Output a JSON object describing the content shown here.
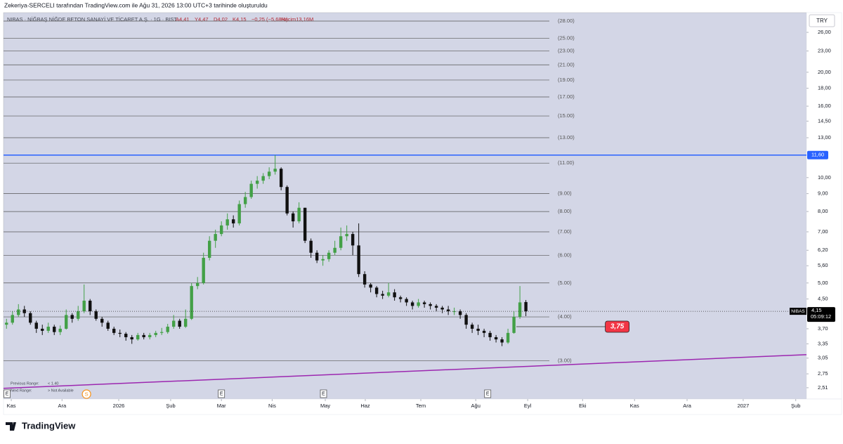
{
  "header": "Zekeriya-SERCELI tarafından TradingView.com ile Ağu 31, 2026 13:00 UTC+3 tarihinde oluşturuldu",
  "footer": "TradingView",
  "chart_data": {
    "type": "candlestick",
    "symbol": "NIBAS · NİĞBAŞ NİĞDE BETON SANAYİ VE TİCARET A.Ş. · 1G · BIST",
    "ohlc_legend": [
      "A4,41",
      "Y4,47",
      "D4,02",
      "K4,15",
      "−0,25 (−5,68%)"
    ],
    "volume_legend": "Hacim13,16M",
    "currency": "TRY",
    "up_color": "#43a047",
    "down_color": "#111111",
    "log_scale": true,
    "open": [
      3.8,
      3.85,
      4.05,
      4.2,
      4.1,
      3.85,
      3.7,
      3.65,
      3.75,
      3.62,
      3.7,
      4.05,
      3.95,
      4.15,
      4.45,
      4.15,
      3.95,
      3.85,
      3.7,
      3.6,
      3.58,
      3.5,
      3.45,
      3.55,
      3.5,
      3.55,
      3.6,
      3.62,
      3.75,
      3.9,
      3.75,
      3.95,
      4.9,
      5.0,
      5.9,
      6.6,
      6.9,
      7.3,
      7.6,
      7.4,
      8.4,
      8.8,
      9.6,
      9.8,
      10.1,
      10.4,
      10.6,
      9.4,
      7.9,
      7.5,
      8.2,
      6.6,
      6.1,
      5.8,
      5.85,
      6.1,
      6.3,
      6.8,
      6.9,
      6.4,
      5.3,
      4.95,
      4.85,
      4.65,
      4.6,
      4.7,
      4.55,
      4.5,
      4.4,
      4.3,
      4.4,
      4.35,
      4.3,
      4.25,
      4.2,
      4.15,
      4.15,
      4.05,
      3.8,
      3.7,
      3.65,
      3.6,
      3.5,
      3.45,
      3.38,
      3.6,
      4.0,
      4.41
    ],
    "high": [
      3.95,
      4.15,
      4.35,
      4.3,
      4.15,
      3.9,
      3.8,
      3.85,
      3.8,
      3.78,
      4.2,
      4.1,
      4.3,
      4.95,
      4.5,
      4.2,
      4.0,
      3.9,
      3.75,
      3.68,
      3.62,
      3.55,
      3.6,
      3.6,
      3.6,
      3.65,
      3.72,
      3.82,
      4.05,
      3.95,
      4.2,
      5.0,
      5.2,
      6.1,
      6.8,
      7.1,
      7.5,
      7.9,
      7.8,
      8.6,
      9.1,
      9.8,
      10.1,
      10.3,
      10.7,
      11.6,
      10.7,
      9.5,
      8.0,
      8.5,
      8.2,
      6.7,
      6.2,
      6.0,
      6.2,
      6.6,
      7.2,
      7.3,
      7.0,
      7.4,
      5.4,
      5.0,
      4.9,
      4.75,
      5.0,
      4.8,
      4.6,
      4.55,
      4.45,
      4.5,
      4.45,
      4.4,
      4.35,
      4.3,
      4.3,
      4.25,
      4.2,
      4.1,
      3.85,
      3.8,
      3.7,
      3.65,
      3.55,
      3.5,
      3.7,
      4.15,
      4.9,
      4.47
    ],
    "low": [
      3.7,
      3.8,
      4.0,
      4.0,
      3.8,
      3.6,
      3.55,
      3.6,
      3.55,
      3.55,
      3.68,
      3.85,
      3.9,
      4.1,
      4.05,
      3.9,
      3.75,
      3.65,
      3.55,
      3.5,
      3.42,
      3.35,
      3.42,
      3.45,
      3.45,
      3.5,
      3.55,
      3.58,
      3.7,
      3.7,
      3.72,
      3.92,
      4.8,
      4.95,
      5.8,
      6.3,
      6.8,
      7.1,
      7.2,
      7.3,
      8.2,
      8.7,
      9.3,
      9.6,
      9.9,
      10.2,
      9.2,
      7.8,
      7.2,
      7.4,
      6.5,
      5.9,
      5.7,
      5.6,
      5.75,
      6.0,
      6.2,
      6.6,
      6.0,
      5.2,
      4.85,
      4.7,
      4.55,
      4.5,
      4.55,
      4.45,
      4.4,
      4.3,
      4.2,
      4.25,
      4.25,
      4.2,
      4.15,
      4.1,
      4.05,
      4.05,
      3.95,
      3.7,
      3.6,
      3.55,
      3.5,
      3.42,
      3.38,
      3.3,
      3.35,
      3.58,
      3.95,
      4.02
    ],
    "close": [
      3.85,
      4.05,
      4.2,
      4.1,
      3.85,
      3.7,
      3.65,
      3.75,
      3.62,
      3.7,
      4.05,
      3.95,
      4.15,
      4.45,
      4.15,
      3.95,
      3.85,
      3.7,
      3.6,
      3.58,
      3.5,
      3.45,
      3.55,
      3.5,
      3.55,
      3.6,
      3.62,
      3.75,
      3.9,
      3.75,
      3.95,
      4.9,
      5.0,
      5.9,
      6.6,
      6.9,
      7.3,
      7.6,
      7.4,
      8.4,
      8.8,
      9.6,
      9.8,
      10.1,
      10.4,
      10.6,
      9.4,
      7.9,
      7.5,
      8.2,
      6.6,
      6.1,
      5.8,
      5.85,
      6.1,
      6.3,
      6.8,
      6.9,
      6.4,
      5.3,
      4.95,
      4.85,
      4.65,
      4.6,
      4.7,
      4.55,
      4.5,
      4.4,
      4.3,
      4.4,
      4.35,
      4.3,
      4.25,
      4.2,
      4.15,
      4.15,
      4.05,
      3.8,
      3.7,
      3.65,
      3.6,
      3.5,
      3.45,
      3.38,
      3.6,
      4.0,
      4.4,
      4.15
    ],
    "last_price_label": "4,15",
    "countdown": "05:09:12",
    "xlim": [
      0,
      134.5
    ],
    "xticks": [
      {
        "value": 1.3,
        "label": "Kas"
      },
      {
        "value": 9.8,
        "label": "Ara"
      },
      {
        "value": 19.3,
        "label": "2026"
      },
      {
        "value": 28,
        "label": "Şub"
      },
      {
        "value": 36.5,
        "label": "Mar"
      },
      {
        "value": 45,
        "label": "Nis"
      },
      {
        "value": 53.9,
        "label": "May"
      },
      {
        "value": 60.6,
        "label": "Haz"
      },
      {
        "value": 69.9,
        "label": "Tem"
      },
      {
        "value": 79.1,
        "label": "Ağu"
      },
      {
        "value": 87.8,
        "label": "Eyl"
      },
      {
        "value": 97,
        "label": "Eki"
      },
      {
        "value": 105.7,
        "label": "Kas"
      },
      {
        "value": 114.5,
        "label": "Ara"
      },
      {
        "value": 123.9,
        "label": "2027"
      },
      {
        "value": 132.7,
        "label": "Şub"
      }
    ],
    "ylim": [
      2.33,
      29.6
    ],
    "yticks": [
      {
        "value": 26,
        "label": "26,00"
      },
      {
        "value": 23,
        "label": "23,00"
      },
      {
        "value": 20,
        "label": "20,00"
      },
      {
        "value": 18,
        "label": "18,00"
      },
      {
        "value": 16,
        "label": "16,00"
      },
      {
        "value": 14.5,
        "label": "14,50"
      },
      {
        "value": 13,
        "label": "13,00"
      },
      {
        "value": 10,
        "label": "10,00"
      },
      {
        "value": 9,
        "label": "9,00"
      },
      {
        "value": 8,
        "label": "8,00"
      },
      {
        "value": 7,
        "label": "7,00"
      },
      {
        "value": 6.2,
        "label": "6,20"
      },
      {
        "value": 5.6,
        "label": "5,60"
      },
      {
        "value": 5,
        "label": "5,00"
      },
      {
        "value": 4.5,
        "label": "4,50"
      },
      {
        "value": 3.7,
        "label": "3,70"
      },
      {
        "value": 3.35,
        "label": "3,35"
      },
      {
        "value": 3.05,
        "label": "3,05"
      },
      {
        "value": 2.75,
        "label": "2,75"
      },
      {
        "value": 2.51,
        "label": "2,51"
      }
    ],
    "levels": [
      {
        "value": 28,
        "label": "(28.00)"
      },
      {
        "value": 25,
        "label": "(25.00)"
      },
      {
        "value": 23,
        "label": "(23.00)"
      },
      {
        "value": 21,
        "label": "(21.00)"
      },
      {
        "value": 19,
        "label": "(19.00)"
      },
      {
        "value": 17,
        "label": "(17.00)"
      },
      {
        "value": 15,
        "label": "(15.00)"
      },
      {
        "value": 13,
        "label": "(13.00)"
      },
      {
        "value": 11,
        "label": "(11.00)"
      },
      {
        "value": 9,
        "label": "(9.00)"
      },
      {
        "value": 8,
        "label": "(8.00)"
      },
      {
        "value": 7,
        "label": "(7.00)"
      },
      {
        "value": 6,
        "label": "(6.00)"
      },
      {
        "value": 5,
        "label": "(5.00)"
      },
      {
        "value": 4,
        "label": "(4.00)"
      },
      {
        "value": 3,
        "label": "(3.00)"
      }
    ],
    "price_line": {
      "value": 11.6,
      "label": "11,60",
      "color": "#2962ff"
    },
    "target": {
      "value": 3.75,
      "label": "3,75",
      "x": [
        85.9,
        100.8
      ],
      "color": "#f23645"
    },
    "trend_line": {
      "x": [
        0,
        134.5
      ],
      "values": [
        2.5,
        3.12
      ],
      "color": "#9c27b0"
    },
    "events": [
      {
        "x": 0.6,
        "label": "E"
      },
      {
        "x": 36.5,
        "label": "E"
      },
      {
        "x": 53.6,
        "label": "E"
      },
      {
        "x": 81.1,
        "label": "E"
      },
      {
        "x": 13.9,
        "label": "S"
      }
    ],
    "range_info": [
      {
        "label": "Previous Range:",
        "value": "< 1.40"
      },
      {
        "label": "Next Range:",
        "value": "> Not Available"
      }
    ]
  }
}
